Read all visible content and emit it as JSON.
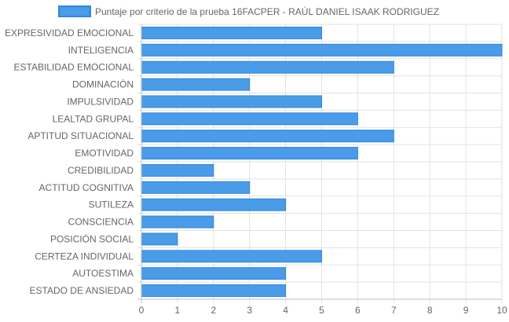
{
  "chart_data": {
    "type": "bar",
    "orientation": "horizontal",
    "series": [
      {
        "name": "Puntaje por criterio de la prueba 16FACPER - RAÚL DANIEL ISAAK RODRIGUEZ",
        "values": [
          5,
          10,
          7,
          3,
          5,
          6,
          7,
          6,
          2,
          3,
          4,
          2,
          1,
          5,
          4,
          4
        ]
      }
    ],
    "categories": [
      "EXPRESIVIDAD EMOCIONAL",
      "INTELIGENCIA",
      "ESTABILIDAD EMOCIONAL",
      "DOMINACIÓN",
      "IMPULSIVIDAD",
      "LEALTAD GRUPAL",
      "APTITUD SITUACIONAL",
      "EMOTIVIDAD",
      "CREDIBILIDAD",
      "ACTITUD COGNITIVA",
      "SUTILEZA",
      "CONSCIENCIA",
      "POSICIÓN SOCIAL",
      "CERTEZA INDIVIDUAL",
      "AUTOESTIMA",
      "ESTADO DE ANSIEDAD"
    ],
    "xlim": [
      0,
      10
    ],
    "xticks": [
      "0",
      "1",
      "2",
      "3",
      "4",
      "5",
      "6",
      "7",
      "8",
      "9",
      "10"
    ],
    "legend_position": "top-center",
    "grid": true,
    "colors": {
      "bar_fill": "#4a9be8",
      "bar_stroke": "#2f86e0",
      "grid": "#e2e2e2",
      "axis": "#bdbdbd",
      "text": "#666666"
    }
  }
}
